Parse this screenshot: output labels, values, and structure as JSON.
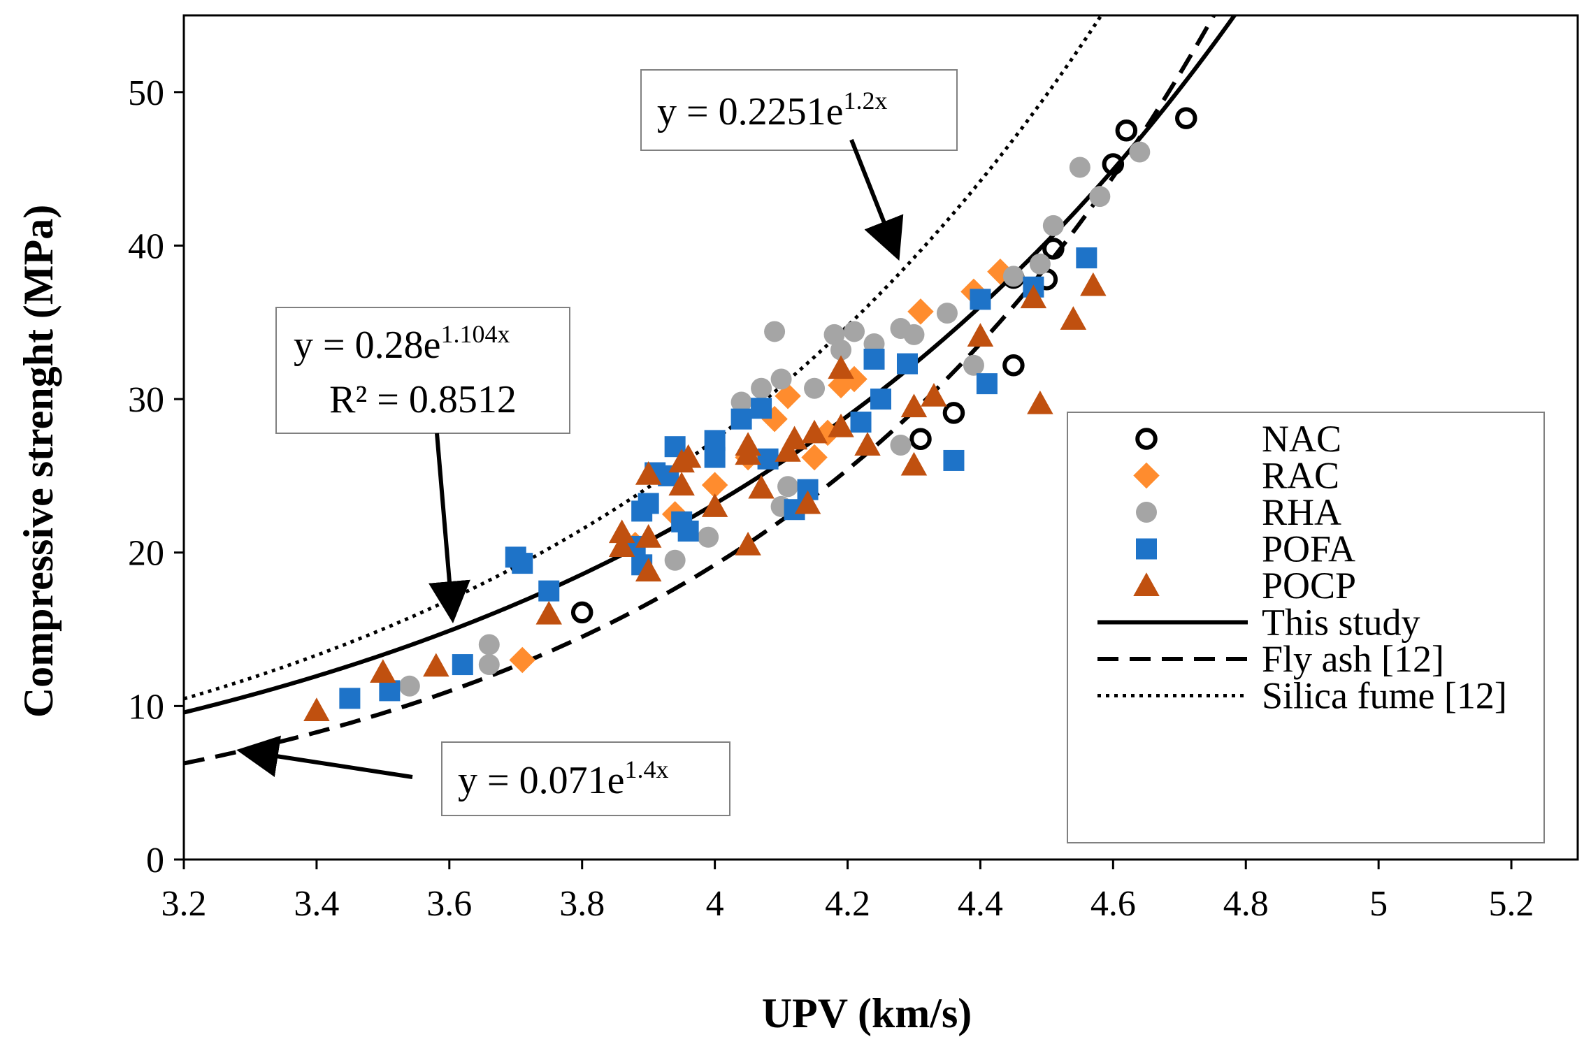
{
  "chart_data": {
    "type": "scatter",
    "title": "",
    "xlabel": "UPV (km/s)",
    "ylabel": "Compressive strenght (MPa)",
    "xlim": [
      3.2,
      5.3
    ],
    "ylim": [
      0,
      55
    ],
    "xticks": [
      "3.2",
      "3.4",
      "3.6",
      "3.8",
      "4",
      "4.2",
      "4.4",
      "4.6",
      "4.8",
      "5",
      "5.2"
    ],
    "yticks": [
      "0",
      "10",
      "20",
      "30",
      "40",
      "50"
    ],
    "grid": false,
    "legend_position": "right",
    "series": [
      {
        "name": "NAC",
        "marker": "open-circle",
        "color": "#000000",
        "points": [
          [
            3.8,
            16.1
          ],
          [
            4.31,
            27.4
          ],
          [
            4.36,
            29.1
          ],
          [
            4.45,
            32.2
          ],
          [
            4.45,
            37.9
          ],
          [
            4.5,
            37.8
          ],
          [
            4.51,
            39.8
          ],
          [
            4.6,
            45.3
          ],
          [
            4.62,
            47.5
          ],
          [
            4.71,
            48.3
          ]
        ]
      },
      {
        "name": "RAC",
        "marker": "diamond",
        "color": "#FF8C2E",
        "points": [
          [
            3.71,
            13.0
          ],
          [
            3.88,
            20.5
          ],
          [
            3.94,
            22.5
          ],
          [
            4.0,
            24.4
          ],
          [
            4.05,
            26.2
          ],
          [
            4.09,
            28.7
          ],
          [
            4.11,
            30.2
          ],
          [
            4.15,
            26.2
          ],
          [
            4.17,
            27.8
          ],
          [
            4.19,
            30.9
          ],
          [
            4.21,
            31.3
          ],
          [
            4.31,
            35.7
          ],
          [
            4.39,
            37.0
          ],
          [
            4.43,
            38.3
          ]
        ]
      },
      {
        "name": "RHA",
        "marker": "circle",
        "color": "#A5A5A5",
        "points": [
          [
            3.54,
            11.3
          ],
          [
            3.66,
            12.7
          ],
          [
            3.66,
            14.0
          ],
          [
            3.94,
            19.5
          ],
          [
            3.99,
            21.0
          ],
          [
            4.04,
            29.8
          ],
          [
            4.07,
            30.7
          ],
          [
            4.09,
            34.4
          ],
          [
            4.1,
            31.3
          ],
          [
            4.1,
            23.0
          ],
          [
            4.11,
            24.3
          ],
          [
            4.15,
            30.7
          ],
          [
            4.18,
            34.2
          ],
          [
            4.19,
            33.2
          ],
          [
            4.21,
            34.4
          ],
          [
            4.24,
            33.6
          ],
          [
            4.28,
            27.0
          ],
          [
            4.28,
            34.6
          ],
          [
            4.3,
            34.2
          ],
          [
            4.35,
            35.6
          ],
          [
            4.39,
            32.2
          ],
          [
            4.45,
            38.0
          ],
          [
            4.49,
            38.8
          ],
          [
            4.51,
            41.3
          ],
          [
            4.55,
            45.1
          ],
          [
            4.58,
            43.2
          ],
          [
            4.64,
            46.1
          ]
        ]
      },
      {
        "name": "POFA",
        "marker": "square",
        "color": "#1E73C8",
        "points": [
          [
            3.45,
            10.5
          ],
          [
            3.51,
            11.0
          ],
          [
            3.62,
            12.7
          ],
          [
            3.7,
            19.7
          ],
          [
            3.71,
            19.3
          ],
          [
            3.75,
            17.5
          ],
          [
            3.88,
            20.4
          ],
          [
            3.89,
            19.2
          ],
          [
            3.89,
            22.7
          ],
          [
            3.9,
            23.2
          ],
          [
            3.91,
            25.2
          ],
          [
            3.93,
            25.0
          ],
          [
            3.94,
            26.9
          ],
          [
            3.95,
            22.0
          ],
          [
            3.96,
            21.4
          ],
          [
            4.0,
            27.3
          ],
          [
            4.0,
            26.2
          ],
          [
            4.04,
            28.7
          ],
          [
            4.07,
            29.4
          ],
          [
            4.08,
            26.1
          ],
          [
            4.12,
            22.8
          ],
          [
            4.14,
            24.1
          ],
          [
            4.22,
            28.5
          ],
          [
            4.24,
            32.6
          ],
          [
            4.25,
            30.0
          ],
          [
            4.29,
            32.3
          ],
          [
            4.36,
            26.0
          ],
          [
            4.4,
            36.5
          ],
          [
            4.41,
            31.0
          ],
          [
            4.48,
            37.3
          ],
          [
            4.56,
            39.2
          ]
        ]
      },
      {
        "name": "POCP",
        "marker": "triangle",
        "color": "#C0500F",
        "points": [
          [
            3.4,
            9.7
          ],
          [
            3.5,
            12.2
          ],
          [
            3.58,
            12.6
          ],
          [
            3.75,
            16.0
          ],
          [
            3.86,
            21.3
          ],
          [
            3.86,
            20.4
          ],
          [
            3.9,
            25.1
          ],
          [
            3.9,
            21.0
          ],
          [
            3.9,
            18.8
          ],
          [
            3.95,
            24.4
          ],
          [
            3.95,
            25.9
          ],
          [
            3.96,
            26.2
          ],
          [
            4.0,
            23.0
          ],
          [
            4.05,
            20.5
          ],
          [
            4.05,
            27.0
          ],
          [
            4.05,
            26.4
          ],
          [
            4.07,
            24.2
          ],
          [
            4.11,
            26.6
          ],
          [
            4.12,
            27.4
          ],
          [
            4.14,
            23.2
          ],
          [
            4.15,
            27.8
          ],
          [
            4.19,
            32.0
          ],
          [
            4.19,
            28.2
          ],
          [
            4.23,
            27.0
          ],
          [
            4.3,
            25.7
          ],
          [
            4.3,
            29.5
          ],
          [
            4.33,
            30.2
          ],
          [
            4.4,
            34.1
          ],
          [
            4.48,
            36.6
          ],
          [
            4.49,
            29.7
          ],
          [
            4.54,
            35.2
          ],
          [
            4.57,
            37.4
          ]
        ]
      }
    ],
    "curves": [
      {
        "name": "This study",
        "style": "solid",
        "a": 0.28,
        "b": 1.104
      },
      {
        "name": "Fly ash [12]",
        "style": "dashed",
        "a": 0.071,
        "b": 1.4
      },
      {
        "name": "Silica fume [12]",
        "style": "dotted",
        "a": 0.2251,
        "b": 1.2
      }
    ],
    "annotations": {
      "silica": {
        "base": "y = 0.2251e",
        "exp": "1.2x"
      },
      "study": {
        "base": "y = 0.28e",
        "exp": "1.104x",
        "r2": "R² = 0.8512"
      },
      "flyash": {
        "base": "y = 0.071e",
        "exp": "1.4x"
      }
    }
  }
}
